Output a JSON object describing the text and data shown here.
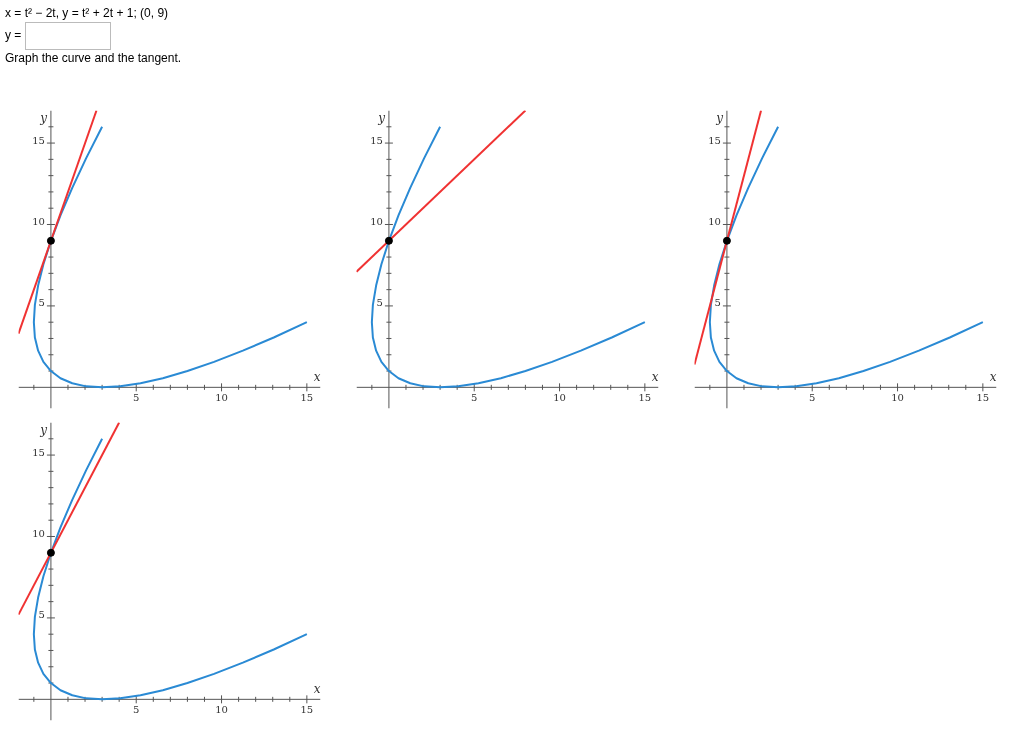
{
  "chart_data": [
    {
      "type": "line",
      "annotations": [
        "x = t² − 2t,     y = t² + 2t + 1;     (0, 9)",
        "y =",
        "Graph the curve and the tangent."
      ],
      "xlabel": "x",
      "ylabel": "y",
      "xlim": [
        -1.9,
        15.8
      ],
      "ylim": [
        -1.3,
        17
      ],
      "xticks": [
        {
          "value": -1,
          "label": null
        },
        {
          "value": 1,
          "label": null
        },
        {
          "value": 2,
          "label": null
        },
        {
          "value": 3,
          "label": null
        },
        {
          "value": 4,
          "label": null
        },
        5,
        {
          "value": 6,
          "label": null
        },
        {
          "value": 7,
          "label": null
        },
        {
          "value": 8,
          "label": null
        },
        {
          "value": 9,
          "label": null
        },
        10,
        {
          "value": 11,
          "label": null
        },
        {
          "value": 12,
          "label": null
        },
        {
          "value": 13,
          "label": null
        },
        {
          "value": 14,
          "label": null
        },
        15
      ],
      "yticks": [
        {
          "value": 1,
          "label": null
        },
        {
          "value": 2,
          "label": null
        },
        {
          "value": 3,
          "label": null
        },
        {
          "value": 4,
          "label": null
        },
        5,
        {
          "value": 6,
          "label": null
        },
        {
          "value": 7,
          "label": null
        },
        {
          "value": 8,
          "label": null
        },
        {
          "value": 9,
          "label": null
        },
        10,
        {
          "value": 11,
          "label": null
        },
        {
          "value": 12,
          "label": null
        },
        {
          "value": 13,
          "label": null
        },
        {
          "value": 14,
          "label": null
        },
        15,
        {
          "value": 16,
          "label": null
        }
      ],
      "grid": false,
      "series": [
        {
          "type": "line",
          "color": "#2a8ad4",
          "x": [
            15,
            13.06,
            11.25,
            9.56,
            8,
            6.56,
            5.25,
            4.06,
            3,
            2.06,
            1.25,
            0.56,
            0,
            -0.44,
            -0.75,
            -0.94,
            -1,
            -0.94,
            -0.75,
            -0.44,
            0,
            0.56,
            1.25,
            2.06,
            3
          ],
          "values": [
            4,
            3.06,
            2.25,
            1.56,
            1,
            0.56,
            0.25,
            0.06,
            0,
            0.06,
            0.25,
            0.56,
            1,
            1.56,
            2.25,
            3.06,
            4,
            5.06,
            6.25,
            7.56,
            9,
            10.56,
            12.25,
            14.06,
            16
          ]
        },
        {
          "type": "line",
          "color": "#f03232",
          "x": [
            -1.9,
            2.67
          ],
          "values": [
            3.3,
            17
          ]
        },
        {
          "type": "scatter",
          "marker": "circle",
          "color": "#000000",
          "x": [
            0
          ],
          "values": [
            9
          ]
        }
      ]
    },
    {
      "type": "line",
      "xlabel": "x",
      "ylabel": "y",
      "xlim": [
        -1.9,
        15.8
      ],
      "ylim": [
        -1.3,
        17
      ],
      "xticks": [
        {
          "value": -1,
          "label": null
        },
        {
          "value": 1,
          "label": null
        },
        {
          "value": 2,
          "label": null
        },
        {
          "value": 3,
          "label": null
        },
        {
          "value": 4,
          "label": null
        },
        5,
        {
          "value": 6,
          "label": null
        },
        {
          "value": 7,
          "label": null
        },
        {
          "value": 8,
          "label": null
        },
        {
          "value": 9,
          "label": null
        },
        10,
        {
          "value": 11,
          "label": null
        },
        {
          "value": 12,
          "label": null
        },
        {
          "value": 13,
          "label": null
        },
        {
          "value": 14,
          "label": null
        },
        15
      ],
      "yticks": [
        {
          "value": 1,
          "label": null
        },
        {
          "value": 2,
          "label": null
        },
        {
          "value": 3,
          "label": null
        },
        {
          "value": 4,
          "label": null
        },
        5,
        {
          "value": 6,
          "label": null
        },
        {
          "value": 7,
          "label": null
        },
        {
          "value": 8,
          "label": null
        },
        {
          "value": 9,
          "label": null
        },
        10,
        {
          "value": 11,
          "label": null
        },
        {
          "value": 12,
          "label": null
        },
        {
          "value": 13,
          "label": null
        },
        {
          "value": 14,
          "label": null
        },
        15,
        {
          "value": 16,
          "label": null
        }
      ],
      "grid": false,
      "series": [
        {
          "type": "line",
          "color": "#2a8ad4",
          "x": [
            15,
            13.06,
            11.25,
            9.56,
            8,
            6.56,
            5.25,
            4.06,
            3,
            2.06,
            1.25,
            0.56,
            0,
            -0.44,
            -0.75,
            -0.94,
            -1,
            -0.94,
            -0.75,
            -0.44,
            0,
            0.56,
            1.25,
            2.06,
            3
          ],
          "values": [
            4,
            3.06,
            2.25,
            1.56,
            1,
            0.56,
            0.25,
            0.06,
            0,
            0.06,
            0.25,
            0.56,
            1,
            1.56,
            2.25,
            3.06,
            4,
            5.06,
            6.25,
            7.56,
            9,
            10.56,
            12.25,
            14.06,
            16
          ]
        },
        {
          "type": "line",
          "color": "#f03232",
          "x": [
            -1.9,
            8
          ],
          "values": [
            7.1,
            17
          ]
        },
        {
          "type": "scatter",
          "marker": "circle",
          "color": "#000000",
          "x": [
            0
          ],
          "values": [
            9
          ]
        }
      ]
    },
    {
      "type": "line",
      "xlabel": "x",
      "ylabel": "y",
      "xlim": [
        -1.9,
        15.8
      ],
      "ylim": [
        -1.3,
        17
      ],
      "xticks": [
        {
          "value": -1,
          "label": null
        },
        {
          "value": 1,
          "label": null
        },
        {
          "value": 2,
          "label": null
        },
        {
          "value": 3,
          "label": null
        },
        {
          "value": 4,
          "label": null
        },
        5,
        {
          "value": 6,
          "label": null
        },
        {
          "value": 7,
          "label": null
        },
        {
          "value": 8,
          "label": null
        },
        {
          "value": 9,
          "label": null
        },
        10,
        {
          "value": 11,
          "label": null
        },
        {
          "value": 12,
          "label": null
        },
        {
          "value": 13,
          "label": null
        },
        {
          "value": 14,
          "label": null
        },
        15
      ],
      "yticks": [
        {
          "value": 1,
          "label": null
        },
        {
          "value": 2,
          "label": null
        },
        {
          "value": 3,
          "label": null
        },
        {
          "value": 4,
          "label": null
        },
        5,
        {
          "value": 6,
          "label": null
        },
        {
          "value": 7,
          "label": null
        },
        {
          "value": 8,
          "label": null
        },
        {
          "value": 9,
          "label": null
        },
        10,
        {
          "value": 11,
          "label": null
        },
        {
          "value": 12,
          "label": null
        },
        {
          "value": 13,
          "label": null
        },
        {
          "value": 14,
          "label": null
        },
        15,
        {
          "value": 16,
          "label": null
        }
      ],
      "grid": false,
      "series": [
        {
          "type": "line",
          "color": "#2a8ad4",
          "x": [
            15,
            13.06,
            11.25,
            9.56,
            8,
            6.56,
            5.25,
            4.06,
            3,
            2.06,
            1.25,
            0.56,
            0,
            -0.44,
            -0.75,
            -0.94,
            -1,
            -0.94,
            -0.75,
            -0.44,
            0,
            0.56,
            1.25,
            2.06,
            3
          ],
          "values": [
            4,
            3.06,
            2.25,
            1.56,
            1,
            0.56,
            0.25,
            0.06,
            0,
            0.06,
            0.25,
            0.56,
            1,
            1.56,
            2.25,
            3.06,
            4,
            5.06,
            6.25,
            7.56,
            9,
            10.56,
            12.25,
            14.06,
            16
          ]
        },
        {
          "type": "line",
          "color": "#f03232",
          "x": [
            -1.9,
            2
          ],
          "values": [
            1.4,
            17
          ]
        },
        {
          "type": "scatter",
          "marker": "circle",
          "color": "#000000",
          "x": [
            0
          ],
          "values": [
            9
          ]
        }
      ]
    },
    {
      "type": "line",
      "xlabel": "x",
      "ylabel": "y",
      "xlim": [
        -1.9,
        15.8
      ],
      "ylim": [
        -1.3,
        17
      ],
      "xticks": [
        {
          "value": -1,
          "label": null
        },
        {
          "value": 1,
          "label": null
        },
        {
          "value": 2,
          "label": null
        },
        {
          "value": 3,
          "label": null
        },
        {
          "value": 4,
          "label": null
        },
        5,
        {
          "value": 6,
          "label": null
        },
        {
          "value": 7,
          "label": null
        },
        {
          "value": 8,
          "label": null
        },
        {
          "value": 9,
          "label": null
        },
        10,
        {
          "value": 11,
          "label": null
        },
        {
          "value": 12,
          "label": null
        },
        {
          "value": 13,
          "label": null
        },
        {
          "value": 14,
          "label": null
        },
        15
      ],
      "yticks": [
        {
          "value": 1,
          "label": null
        },
        {
          "value": 2,
          "label": null
        },
        {
          "value": 3,
          "label": null
        },
        {
          "value": 4,
          "label": null
        },
        5,
        {
          "value": 6,
          "label": null
        },
        {
          "value": 7,
          "label": null
        },
        {
          "value": 8,
          "label": null
        },
        {
          "value": 9,
          "label": null
        },
        10,
        {
          "value": 11,
          "label": null
        },
        {
          "value": 12,
          "label": null
        },
        {
          "value": 13,
          "label": null
        },
        {
          "value": 14,
          "label": null
        },
        15,
        {
          "value": 16,
          "label": null
        }
      ],
      "grid": false,
      "series": [
        {
          "type": "line",
          "color": "#2a8ad4",
          "x": [
            15,
            13.06,
            11.25,
            9.56,
            8,
            6.56,
            5.25,
            4.06,
            3,
            2.06,
            1.25,
            0.56,
            0,
            -0.44,
            -0.75,
            -0.94,
            -1,
            -0.94,
            -0.75,
            -0.44,
            0,
            0.56,
            1.25,
            2.06,
            3
          ],
          "values": [
            4,
            3.06,
            2.25,
            1.56,
            1,
            0.56,
            0.25,
            0.06,
            0,
            0.06,
            0.25,
            0.56,
            1,
            1.56,
            2.25,
            3.06,
            4,
            5.06,
            6.25,
            7.56,
            9,
            10.56,
            12.25,
            14.06,
            16
          ]
        },
        {
          "type": "line",
          "color": "#f03232",
          "x": [
            -1.9,
            4
          ],
          "values": [
            5.2,
            17
          ]
        },
        {
          "type": "scatter",
          "marker": "circle",
          "color": "#000000",
          "x": [
            0
          ],
          "values": [
            9
          ]
        }
      ]
    }
  ]
}
